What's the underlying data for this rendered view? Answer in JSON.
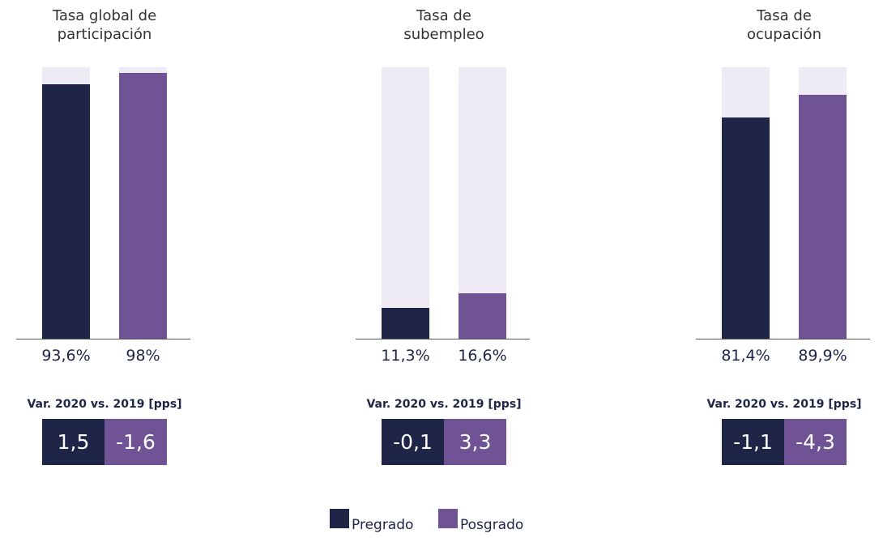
{
  "chart_data": [
    {
      "type": "bar",
      "title": "Tasa global de\nparticipación",
      "ylim": [
        0,
        100
      ],
      "values": [
        93.6,
        98
      ],
      "value_labels": [
        "93,6%",
        "98%"
      ],
      "variation_label": "Var. 2020 vs. 2019 [pps]",
      "variations": [
        1.5,
        -1.6
      ],
      "variation_labels": [
        "1,5",
        "-1,6"
      ]
    },
    {
      "type": "bar",
      "title": "Tasa de\nsubempleo",
      "ylim": [
        0,
        100
      ],
      "values": [
        11.3,
        16.6
      ],
      "value_labels": [
        "11,3%",
        "16,6%"
      ],
      "variation_label": "Var. 2020 vs. 2019 [pps]",
      "variations": [
        -0.1,
        3.3
      ],
      "variation_labels": [
        "-0,1",
        "3,3"
      ]
    },
    {
      "type": "bar",
      "title": "Tasa de\nocupación",
      "ylim": [
        0,
        100
      ],
      "values": [
        81.4,
        89.9
      ],
      "value_labels": [
        "81,4%",
        "89,9%"
      ],
      "variation_label": "Var. 2020 vs. 2019 [pps]",
      "variations": [
        -1.1,
        -4.3
      ],
      "variation_labels": [
        "-1,1",
        "-4,3"
      ]
    }
  ],
  "legend": [
    {
      "name": "Pregrado",
      "color": "#1f2547"
    },
    {
      "name": "Posgrado",
      "color": "#6f5394"
    }
  ],
  "track_color": "#eeebf4"
}
